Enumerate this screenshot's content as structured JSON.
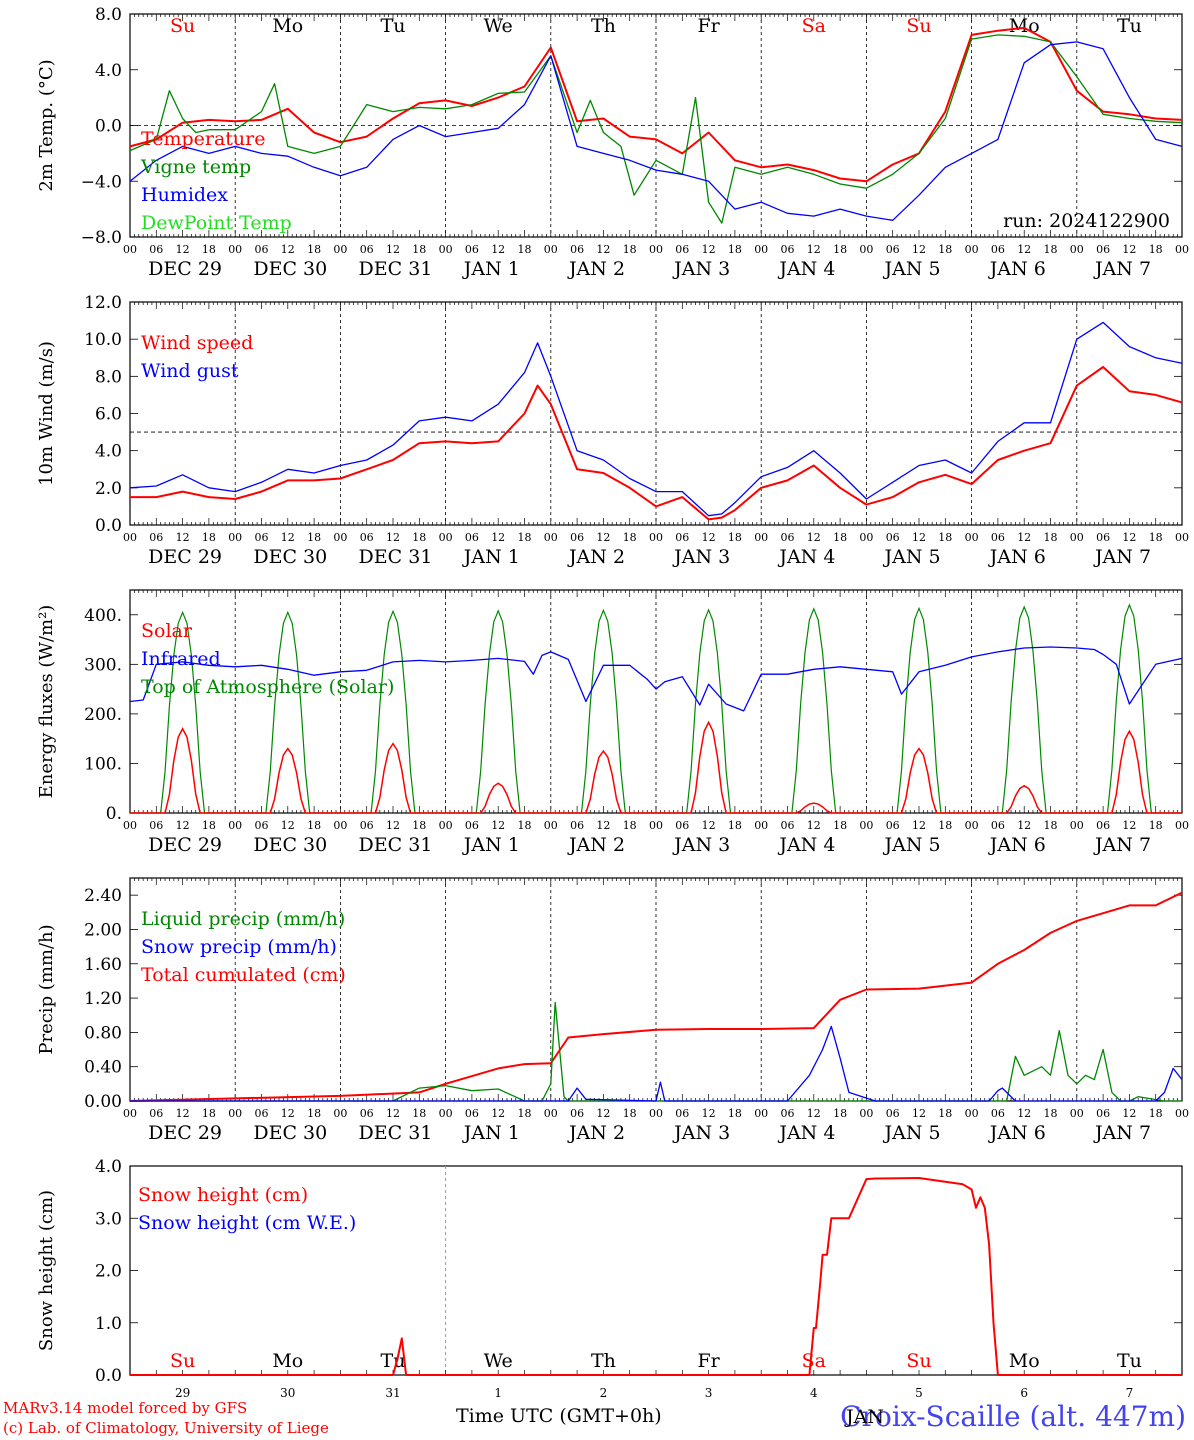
{
  "colors": {
    "red": "#ff0000",
    "green": "#008800",
    "blue": "#0000ff",
    "light_green": "#22dd22",
    "black": "#000000"
  },
  "footer": {
    "model": "MARv3.14 model forced by GFS",
    "lab": "(c) Lab. of Climatology, University of Liege",
    "xlabel": "Time UTC (GMT+0h)",
    "station": "Croix-Scaille (alt. 447m)",
    "month": "JAN"
  },
  "chart_data": [
    {
      "type": "line",
      "ylabel": "2m Temp. (°C)",
      "ylim": [
        -8,
        8
      ],
      "yticks": [
        "8.0",
        "4.0",
        "0.0",
        "−4.0",
        "−8.0"
      ],
      "xlim_hours": [
        0,
        240
      ],
      "hline": 0,
      "day_labels": [
        "Su",
        "Mo",
        "Tu",
        "We",
        "Th",
        "Fr",
        "Sa",
        "Su",
        "Mo",
        "Tu"
      ],
      "date_labels": [
        "DEC 29",
        "DEC 30",
        "DEC 31",
        "JAN  1",
        "JAN  2",
        "JAN  3",
        "JAN  4",
        "JAN  5",
        "JAN  6",
        "JAN  7"
      ],
      "hour_labels": [
        "00",
        "06",
        "12",
        "18"
      ],
      "annotation": "run: 2024122900",
      "legend": [
        "Temperature",
        "Vigne temp",
        "Humidex",
        "DewPoint Temp"
      ],
      "series": [
        {
          "name": "Temperature",
          "color": "red",
          "x": [
            0,
            6,
            12,
            18,
            24,
            30,
            36,
            42,
            48,
            54,
            60,
            66,
            72,
            78,
            84,
            90,
            96,
            102,
            108,
            114,
            120,
            126,
            132,
            138,
            144,
            150,
            156,
            162,
            168,
            174,
            180,
            186,
            192,
            198,
            204,
            210,
            216,
            222,
            228,
            234,
            240
          ],
          "y": [
            -1.5,
            -1.0,
            0.2,
            0.4,
            0.3,
            0.4,
            1.2,
            -0.5,
            -1.2,
            -0.8,
            0.5,
            1.6,
            1.8,
            1.4,
            2.0,
            2.8,
            5.6,
            0.3,
            0.5,
            -0.8,
            -1.0,
            -2.0,
            -0.5,
            -2.5,
            -3.0,
            -2.8,
            -3.2,
            -3.8,
            -4.0,
            -2.8,
            -2.0,
            1.0,
            6.5,
            6.8,
            7.0,
            6.0,
            2.5,
            1.0,
            0.8,
            0.5,
            0.4
          ]
        },
        {
          "name": "Vigne temp",
          "color": "green",
          "x": [
            0,
            6,
            9,
            12,
            15,
            18,
            24,
            30,
            33,
            36,
            42,
            48,
            54,
            60,
            66,
            72,
            78,
            84,
            90,
            96,
            102,
            105,
            108,
            112,
            115,
            120,
            126,
            129,
            132,
            135,
            138,
            144,
            150,
            156,
            162,
            168,
            174,
            180,
            186,
            192,
            198,
            204,
            210,
            216,
            222,
            228,
            234,
            240
          ],
          "y": [
            -1.8,
            -1.0,
            2.5,
            0.5,
            -0.5,
            -0.3,
            -0.3,
            1.0,
            3.0,
            -1.5,
            -2.0,
            -1.5,
            1.5,
            1.0,
            1.3,
            1.2,
            1.5,
            2.3,
            2.4,
            5.0,
            -0.5,
            1.8,
            -0.5,
            -1.5,
            -5.0,
            -2.5,
            -3.5,
            2.0,
            -5.5,
            -7.0,
            -3.0,
            -3.5,
            -3.0,
            -3.5,
            -4.2,
            -4.5,
            -3.5,
            -2.0,
            0.5,
            6.2,
            6.5,
            6.4,
            6.0,
            3.5,
            0.8,
            0.5,
            0.3,
            0.2
          ]
        },
        {
          "name": "Humidex",
          "color": "blue",
          "x": [
            0,
            6,
            12,
            18,
            24,
            30,
            36,
            42,
            48,
            54,
            60,
            66,
            72,
            78,
            84,
            90,
            96,
            102,
            108,
            114,
            120,
            126,
            132,
            138,
            144,
            150,
            156,
            162,
            168,
            174,
            180,
            186,
            192,
            198,
            204,
            210,
            216,
            222,
            228,
            234,
            240
          ],
          "y": [
            -4.0,
            -2.5,
            -1.5,
            -2.0,
            -1.5,
            -2.0,
            -2.2,
            -3.0,
            -3.6,
            -3.0,
            -1.0,
            0.0,
            -0.8,
            -0.5,
            -0.2,
            1.5,
            5.0,
            -1.5,
            -2.0,
            -2.5,
            -3.2,
            -3.5,
            -4.0,
            -6.0,
            -5.5,
            -6.3,
            -6.5,
            -6.0,
            -6.5,
            -6.8,
            -5.0,
            -3.0,
            -2.0,
            -1.0,
            4.5,
            5.8,
            6.0,
            5.5,
            2.0,
            -1.0,
            -1.5
          ]
        }
      ]
    },
    {
      "type": "line",
      "ylabel": "10m Wind (m/s)",
      "ylim": [
        0,
        12
      ],
      "yticks": [
        "12.0",
        "10.0",
        "8.0",
        "6.0",
        "4.0",
        "2.0",
        "0.0"
      ],
      "xlim_hours": [
        0,
        240
      ],
      "hline": 5,
      "date_labels": [
        "DEC 29",
        "DEC 30",
        "DEC 31",
        "JAN  1",
        "JAN  2",
        "JAN  3",
        "JAN  4",
        "JAN  5",
        "JAN  6",
        "JAN  7"
      ],
      "hour_labels": [
        "00",
        "06",
        "12",
        "18"
      ],
      "legend": [
        "Wind speed",
        "Wind gust"
      ],
      "series": [
        {
          "name": "Wind speed",
          "color": "red",
          "x": [
            0,
            6,
            12,
            18,
            24,
            30,
            36,
            42,
            48,
            54,
            60,
            66,
            72,
            78,
            84,
            90,
            93,
            96,
            102,
            108,
            114,
            120,
            126,
            132,
            135,
            138,
            144,
            150,
            156,
            162,
            168,
            174,
            180,
            186,
            192,
            198,
            204,
            210,
            216,
            222,
            228,
            234,
            240
          ],
          "y": [
            1.5,
            1.5,
            1.8,
            1.5,
            1.4,
            1.8,
            2.4,
            2.4,
            2.5,
            3.0,
            3.5,
            4.4,
            4.5,
            4.4,
            4.5,
            6.0,
            7.5,
            6.5,
            3.0,
            2.8,
            2.0,
            1.0,
            1.5,
            0.3,
            0.4,
            0.8,
            2.0,
            2.4,
            3.2,
            2.0,
            1.1,
            1.5,
            2.3,
            2.7,
            2.2,
            3.5,
            4.0,
            4.4,
            7.5,
            8.5,
            7.2,
            7.0,
            6.6
          ]
        },
        {
          "name": "Wind gust",
          "color": "blue",
          "x": [
            0,
            6,
            12,
            18,
            24,
            30,
            36,
            42,
            48,
            54,
            60,
            66,
            72,
            78,
            84,
            90,
            93,
            96,
            102,
            108,
            114,
            120,
            126,
            132,
            135,
            138,
            144,
            150,
            156,
            162,
            168,
            174,
            180,
            186,
            192,
            198,
            204,
            210,
            216,
            222,
            228,
            234,
            240
          ],
          "y": [
            2.0,
            2.1,
            2.7,
            2.0,
            1.8,
            2.3,
            3.0,
            2.8,
            3.2,
            3.5,
            4.3,
            5.6,
            5.8,
            5.6,
            6.5,
            8.2,
            9.8,
            8.0,
            4.0,
            3.5,
            2.5,
            1.8,
            1.8,
            0.5,
            0.6,
            1.2,
            2.6,
            3.1,
            4.0,
            2.8,
            1.4,
            2.3,
            3.2,
            3.5,
            2.8,
            4.5,
            5.5,
            5.5,
            10.0,
            10.9,
            9.6,
            9.0,
            8.7
          ]
        }
      ]
    },
    {
      "type": "line",
      "ylabel": "Energy fluxes (W/m²)",
      "ylim": [
        0,
        450
      ],
      "yticks": [
        "400.",
        "300.",
        "200.",
        "100.",
        "0."
      ],
      "xlim_hours": [
        0,
        240
      ],
      "date_labels": [
        "DEC 29",
        "DEC 30",
        "DEC 31",
        "JAN  1",
        "JAN  2",
        "JAN  3",
        "JAN  4",
        "JAN  5",
        "JAN  6",
        "JAN  7"
      ],
      "hour_labels": [
        "00",
        "06",
        "12",
        "18"
      ],
      "legend": [
        "Solar",
        "Infrared",
        "Top of Atmosphere (Solar)"
      ],
      "toa_peak": [
        405,
        405,
        407,
        408,
        409,
        410,
        412,
        413,
        416,
        420
      ],
      "solar_peak": [
        170,
        130,
        140,
        60,
        125,
        183,
        20,
        130,
        55,
        165
      ],
      "series": [
        {
          "name": "Infrared",
          "color": "blue",
          "x": [
            0,
            3,
            6,
            12,
            18,
            24,
            30,
            36,
            42,
            48,
            54,
            60,
            66,
            72,
            78,
            84,
            90,
            92,
            94,
            96,
            100,
            104,
            108,
            114,
            118,
            120,
            122,
            126,
            130,
            132,
            136,
            140,
            144,
            150,
            156,
            162,
            168,
            174,
            176,
            180,
            186,
            192,
            198,
            204,
            210,
            216,
            220,
            222,
            225,
            228,
            234,
            240
          ],
          "y": [
            225,
            228,
            300,
            305,
            298,
            295,
            298,
            290,
            278,
            285,
            288,
            305,
            308,
            305,
            308,
            312,
            306,
            280,
            318,
            325,
            310,
            225,
            298,
            298,
            270,
            250,
            265,
            275,
            218,
            260,
            220,
            206,
            280,
            280,
            290,
            295,
            290,
            285,
            240,
            285,
            298,
            315,
            325,
            333,
            335,
            333,
            330,
            320,
            300,
            220,
            300,
            312
          ]
        }
      ]
    },
    {
      "type": "line",
      "ylabel": "Precip (mm/h)",
      "ylim": [
        0,
        2.6
      ],
      "yticks": [
        "2.40",
        "2.00",
        "1.60",
        "1.20",
        "0.80",
        "0.40",
        "0.00"
      ],
      "xlim_hours": [
        0,
        240
      ],
      "date_labels": [
        "DEC 29",
        "DEC 30",
        "DEC 31",
        "JAN  1",
        "JAN  2",
        "JAN  3",
        "JAN  4",
        "JAN  5",
        "JAN  6",
        "JAN  7"
      ],
      "hour_labels": [
        "00",
        "06",
        "12",
        "18"
      ],
      "legend": [
        "Liquid precip (mm/h)",
        "Snow precip (mm/h)",
        "Total cumulated (cm)"
      ],
      "series": [
        {
          "name": "Total cumulated (cm)",
          "color": "red",
          "x": [
            0,
            24,
            48,
            66,
            72,
            84,
            90,
            96,
            100,
            108,
            120,
            132,
            144,
            156,
            162,
            168,
            180,
            192,
            198,
            204,
            210,
            216,
            228,
            234,
            240
          ],
          "y": [
            0.0,
            0.03,
            0.06,
            0.1,
            0.2,
            0.38,
            0.43,
            0.44,
            0.74,
            0.78,
            0.83,
            0.84,
            0.84,
            0.85,
            1.18,
            1.3,
            1.31,
            1.38,
            1.6,
            1.76,
            1.96,
            2.1,
            2.28,
            2.28,
            2.43
          ]
        },
        {
          "name": "Liquid precip (mm/h)",
          "color": "green",
          "x": [
            0,
            60,
            66,
            72,
            78,
            84,
            90,
            94,
            96,
            97,
            99,
            100,
            102,
            120,
            200,
            202,
            204,
            208,
            210,
            212,
            214,
            216,
            218,
            220,
            222,
            224,
            226,
            228,
            230,
            236,
            238,
            240
          ],
          "y": [
            0,
            0,
            0.15,
            0.18,
            0.12,
            0.14,
            0.0,
            0.0,
            0.2,
            1.15,
            0.05,
            0.0,
            0.0,
            0.0,
            0.0,
            0.52,
            0.3,
            0.4,
            0.3,
            0.82,
            0.3,
            0.2,
            0.3,
            0.25,
            0.6,
            0.1,
            0.0,
            0.0,
            0.05,
            0.0,
            0.0,
            0.0
          ]
        },
        {
          "name": "Snow precip (mm/h)",
          "color": "blue",
          "x": [
            0,
            100,
            102,
            104,
            120,
            121,
            122,
            150,
            155,
            158,
            160,
            162,
            164,
            170,
            196,
            198,
            199,
            200,
            202,
            234,
            236,
            238,
            240
          ],
          "y": [
            0,
            0,
            0.15,
            0.02,
            0.0,
            0.22,
            0.0,
            0.0,
            0.3,
            0.6,
            0.87,
            0.5,
            0.1,
            0.0,
            0.0,
            0.12,
            0.15,
            0.1,
            0.0,
            0.0,
            0.1,
            0.38,
            0.25
          ]
        }
      ]
    },
    {
      "type": "line",
      "ylabel": "Snow height (cm)",
      "ylim": [
        0,
        4
      ],
      "yticks": [
        "4.0",
        "3.0",
        "2.0",
        "1.0",
        "0.0"
      ],
      "xlim_hours": [
        0,
        240
      ],
      "day_labels": [
        "Su",
        "Mo",
        "Tu",
        "We",
        "Th",
        "Fr",
        "Sa",
        "Su",
        "Mo",
        "Tu"
      ],
      "day_numbers": [
        "29",
        "30",
        "31",
        "1",
        "2",
        "3",
        "4",
        "5",
        "6",
        "7"
      ],
      "legend": [
        "Snow height (cm)",
        "Snow height (cm W.E.)"
      ],
      "series": [
        {
          "name": "Snow height (cm)",
          "color": "red",
          "x": [
            0,
            60,
            61,
            62,
            63,
            64,
            155,
            156,
            156.5,
            157.5,
            158,
            159,
            160,
            161,
            162,
            164,
            168,
            170,
            180,
            190,
            192,
            193,
            194,
            195,
            196,
            197,
            198,
            240
          ],
          "y": [
            0,
            0,
            0.3,
            0.7,
            0.0,
            0.0,
            0.0,
            0.9,
            0.9,
            1.8,
            2.3,
            2.3,
            3.0,
            3.0,
            3.0,
            3.0,
            3.75,
            3.76,
            3.77,
            3.65,
            3.55,
            3.2,
            3.4,
            3.2,
            2.5,
            1.0,
            0.0,
            0.0
          ]
        }
      ]
    }
  ]
}
